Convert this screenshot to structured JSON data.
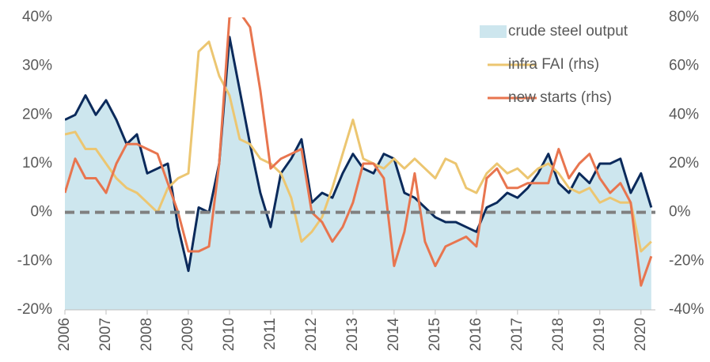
{
  "chart_data": {
    "type": "area-line",
    "x": [
      2006,
      2006.25,
      2006.5,
      2006.75,
      2007,
      2007.25,
      2007.5,
      2007.75,
      2008,
      2008.25,
      2008.5,
      2008.75,
      2009,
      2009.25,
      2009.5,
      2009.75,
      2010,
      2010.25,
      2010.5,
      2010.75,
      2011,
      2011.25,
      2011.5,
      2011.75,
      2012,
      2012.25,
      2012.5,
      2012.75,
      2013,
      2013.25,
      2013.5,
      2013.75,
      2014,
      2014.25,
      2014.5,
      2014.75,
      2015,
      2015.25,
      2015.5,
      2015.75,
      2016,
      2016.25,
      2016.5,
      2016.75,
      2017,
      2017.25,
      2017.5,
      2017.75,
      2018,
      2018.25,
      2018.5,
      2018.75,
      2019,
      2019.25,
      2019.5,
      2019.75,
      2020,
      2020.25
    ],
    "series": [
      {
        "name": "crude steel output",
        "color": "#cde6ee",
        "line_color": "#0b2a5b",
        "values": [
          19,
          20,
          24,
          20,
          23,
          19,
          14,
          16,
          8,
          9,
          10,
          -3,
          -12,
          1,
          0,
          10,
          36,
          25,
          14,
          4,
          -3,
          8,
          11,
          15,
          2,
          4,
          3,
          8,
          12,
          9,
          8,
          12,
          11,
          4,
          3,
          1,
          -1,
          -2,
          -2,
          -3,
          -4,
          1,
          2,
          4,
          3,
          5,
          8,
          12,
          6,
          4,
          8,
          6,
          10,
          10,
          11,
          4,
          8,
          1
        ]
      },
      {
        "name": "infra FAI (rhs)",
        "color": "#ecc671",
        "axis": "y2",
        "values": [
          32,
          33,
          26,
          26,
          20,
          14,
          10,
          8,
          4,
          0,
          10,
          14,
          16,
          66,
          70,
          56,
          48,
          30,
          28,
          22,
          20,
          16,
          6,
          -12,
          -8,
          -2,
          10,
          24,
          38,
          22,
          20,
          18,
          22,
          18,
          22,
          18,
          14,
          22,
          20,
          10,
          8,
          16,
          20,
          16,
          18,
          14,
          18,
          20,
          16,
          10,
          8,
          10,
          4,
          6,
          4,
          4,
          -16,
          -12
        ]
      },
      {
        "name": "new starts (rhs)",
        "color": "#e8754f",
        "axis": "y2",
        "values": [
          8,
          22,
          14,
          14,
          8,
          20,
          28,
          28,
          26,
          24,
          12,
          0,
          -16,
          -16,
          -14,
          20,
          80,
          82,
          76,
          50,
          18,
          22,
          24,
          26,
          0,
          -4,
          -12,
          -6,
          4,
          20,
          20,
          14,
          -22,
          -8,
          16,
          -12,
          -22,
          -14,
          -12,
          -10,
          -14,
          14,
          18,
          10,
          10,
          12,
          12,
          12,
          26,
          14,
          20,
          24,
          14,
          8,
          12,
          4,
          -30,
          -18
        ]
      }
    ],
    "xlim": [
      2006,
      2020.35
    ],
    "xticks": [
      2006,
      2007,
      2008,
      2009,
      2010,
      2011,
      2012,
      2013,
      2014,
      2015,
      2016,
      2017,
      2018,
      2019,
      2020
    ],
    "ylim": [
      -20,
      40
    ],
    "yticks": [
      {
        "value": -20,
        "label": "-20%"
      },
      {
        "value": -10,
        "label": "-10%"
      },
      {
        "value": 0,
        "label": "0%"
      },
      {
        "value": 10,
        "label": "10%"
      },
      {
        "value": 20,
        "label": "20%"
      },
      {
        "value": 30,
        "label": "30%"
      },
      {
        "value": 40,
        "label": "40%"
      }
    ],
    "y2lim": [
      -40,
      80
    ],
    "y2ticks": [
      {
        "value": -40,
        "label": "-40%"
      },
      {
        "value": -20,
        "label": "-20%"
      },
      {
        "value": 0,
        "label": "0%"
      },
      {
        "value": 20,
        "label": "20%"
      },
      {
        "value": 40,
        "label": "40%"
      },
      {
        "value": 60,
        "label": "60%"
      },
      {
        "value": 80,
        "label": "80%"
      }
    ],
    "zero_line_color": "#808080",
    "legend": "upper right"
  }
}
